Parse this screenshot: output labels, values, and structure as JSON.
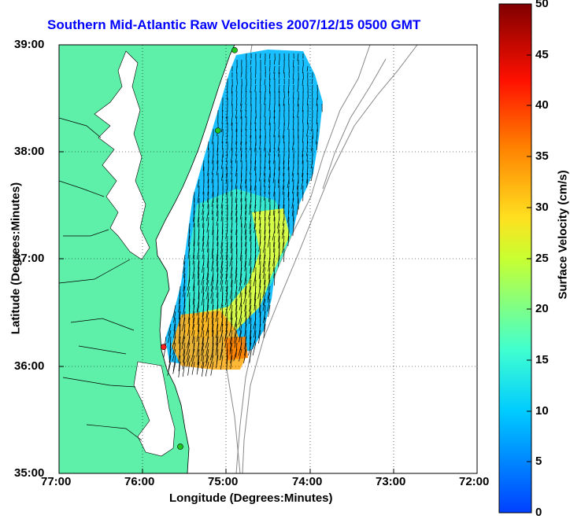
{
  "title": "Southern Mid-Atlantic Raw Velocities 2007/12/15 0500 GMT",
  "xlabel": "Longitude (Degrees:Minutes)",
  "ylabel": "Latitude (Degrees:Minutes)",
  "colorbar": {
    "label": "Surface Velocity (cm/s)",
    "range": [
      0,
      50
    ],
    "ticks": [
      "0",
      "5",
      "10",
      "15",
      "20",
      "25",
      "30",
      "35",
      "40",
      "45",
      "50"
    ]
  },
  "x_ticks": [
    "77:00",
    "76:00",
    "75:00",
    "74:00",
    "73:00",
    "72:00"
  ],
  "y_ticks": [
    "39:00",
    "38:00",
    "37:00",
    "36:00",
    "35:00"
  ],
  "map": {
    "lon_range": [
      -77,
      -72
    ],
    "lat_range": [
      35,
      39
    ],
    "grid": "dotted",
    "land_color": "#5ef0a8",
    "contour_color": "#888888",
    "vector_color": "#000000",
    "stations": [
      {
        "lon": -74.9,
        "lat": 38.95,
        "color": "#22c41e"
      },
      {
        "lon": -75.1,
        "lat": 38.2,
        "color": "#22c41e"
      },
      {
        "lon": -75.75,
        "lat": 36.18,
        "color": "#ff2020"
      },
      {
        "lon": -75.55,
        "lat": 35.25,
        "color": "#22c41e"
      }
    ]
  }
}
